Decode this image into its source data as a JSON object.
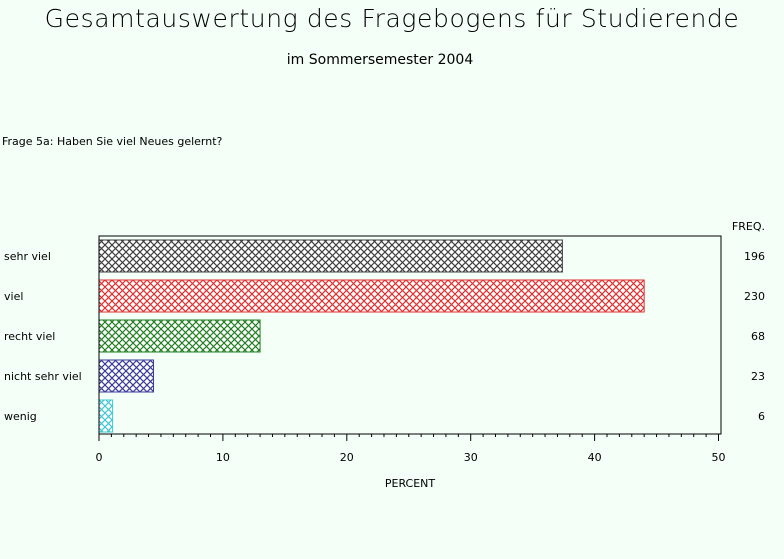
{
  "page": {
    "title": "Gesamtauswertung des Fragebogens für Studierende",
    "subtitle": "im Sommersemester 2004",
    "question": "Frage 5a: Haben Sie viel Neues gelernt?"
  },
  "chart_data": {
    "type": "bar",
    "orientation": "horizontal",
    "categories": [
      "sehr viel",
      "viel",
      "recht viel",
      "nicht sehr viel",
      "wenig"
    ],
    "values": [
      37.4,
      44.0,
      13.0,
      4.4,
      1.1
    ],
    "freq_header": "FREQ.",
    "freq": [
      "196",
      "230",
      "68",
      "23",
      "6"
    ],
    "colors": [
      "#404040",
      "#e03030",
      "#208020",
      "#3a3a9a",
      "#40c8d0"
    ],
    "xlabel": "PERCENT",
    "xlim": [
      0,
      50
    ],
    "xticks": [
      "0",
      "10",
      "20",
      "30",
      "40",
      "50"
    ],
    "grid": false,
    "legend": "none"
  }
}
